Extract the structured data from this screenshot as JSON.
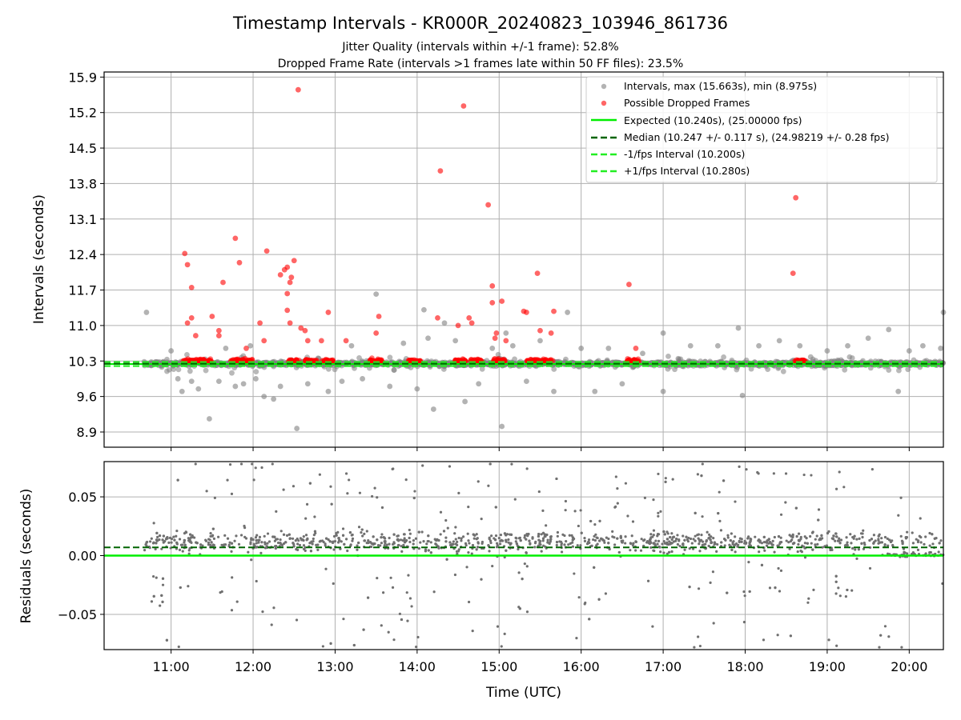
{
  "chart_data": [
    {
      "type": "scatter",
      "title": "Timestamp Intervals - KR000R_20240823_103946_861736",
      "subtitles": [
        "Jitter Quality (intervals within +/-1 frame): 52.8%",
        "Dropped Frame Rate (intervals >1 frames late within 50 FF files): 23.5%"
      ],
      "ylabel": "Intervals (seconds)",
      "ylim": [
        8.6,
        16.0
      ],
      "yticks": [
        "8.9",
        "9.6",
        "10.3",
        "11.0",
        "11.7",
        "12.4",
        "13.1",
        "13.8",
        "14.5",
        "15.2",
        "15.9"
      ],
      "xlim": [
        "10:11",
        "20:25"
      ],
      "grid": true,
      "legend_position": "upper right",
      "legend": [
        "Intervals, max (15.663s), min (8.975s)",
        "Possible Dropped Frames",
        "Expected (10.240s), (25.00000 fps)",
        "Median (10.247 +/- 0.117 s), (24.98219 +/- 0.28 fps)",
        "-1/fps Interval (10.200s)",
        "+1/fps Interval (10.280s)"
      ],
      "expected": 10.24,
      "median": 10.247,
      "minus_interval": 10.2,
      "plus_interval": 10.28,
      "interval_range": [
        "10:40",
        "20:25"
      ],
      "interval_outliers": [
        {
          "x": "10:42",
          "y": 11.26
        },
        {
          "x": "11:00",
          "y": 10.5
        },
        {
          "x": "11:05",
          "y": 9.95
        },
        {
          "x": "11:08",
          "y": 9.7
        },
        {
          "x": "11:15",
          "y": 9.9
        },
        {
          "x": "11:20",
          "y": 9.75
        },
        {
          "x": "11:28",
          "y": 9.16
        },
        {
          "x": "11:35",
          "y": 9.9
        },
        {
          "x": "11:40",
          "y": 10.55
        },
        {
          "x": "11:47",
          "y": 9.8
        },
        {
          "x": "11:53",
          "y": 9.85
        },
        {
          "x": "11:58",
          "y": 10.6
        },
        {
          "x": "12:02",
          "y": 9.95
        },
        {
          "x": "12:08",
          "y": 9.6
        },
        {
          "x": "12:15",
          "y": 9.55
        },
        {
          "x": "12:20",
          "y": 9.8
        },
        {
          "x": "12:32",
          "y": 8.97
        },
        {
          "x": "12:40",
          "y": 9.85
        },
        {
          "x": "12:48",
          "y": 10.35
        },
        {
          "x": "12:55",
          "y": 9.7
        },
        {
          "x": "13:05",
          "y": 9.9
        },
        {
          "x": "13:12",
          "y": 10.6
        },
        {
          "x": "13:20",
          "y": 9.95
        },
        {
          "x": "13:30",
          "y": 11.62
        },
        {
          "x": "13:40",
          "y": 9.8
        },
        {
          "x": "13:50",
          "y": 10.65
        },
        {
          "x": "14:00",
          "y": 9.75
        },
        {
          "x": "14:05",
          "y": 11.31
        },
        {
          "x": "14:08",
          "y": 10.75
        },
        {
          "x": "14:12",
          "y": 9.35
        },
        {
          "x": "14:20",
          "y": 11.05
        },
        {
          "x": "14:28",
          "y": 10.7
        },
        {
          "x": "14:35",
          "y": 9.5
        },
        {
          "x": "14:45",
          "y": 9.85
        },
        {
          "x": "14:55",
          "y": 10.55
        },
        {
          "x": "15:02",
          "y": 9.01
        },
        {
          "x": "15:05",
          "y": 10.85
        },
        {
          "x": "15:10",
          "y": 10.6
        },
        {
          "x": "15:20",
          "y": 9.9
        },
        {
          "x": "15:30",
          "y": 10.7
        },
        {
          "x": "15:40",
          "y": 9.7
        },
        {
          "x": "15:50",
          "y": 11.26
        },
        {
          "x": "16:00",
          "y": 10.55
        },
        {
          "x": "16:10",
          "y": 9.7
        },
        {
          "x": "16:20",
          "y": 10.55
        },
        {
          "x": "16:30",
          "y": 9.85
        },
        {
          "x": "16:45",
          "y": 10.45
        },
        {
          "x": "17:00",
          "y": 10.85
        },
        {
          "x": "17:00",
          "y": 9.7
        },
        {
          "x": "17:20",
          "y": 10.6
        },
        {
          "x": "17:40",
          "y": 10.6
        },
        {
          "x": "17:55",
          "y": 10.95
        },
        {
          "x": "17:58",
          "y": 9.62
        },
        {
          "x": "18:10",
          "y": 10.6
        },
        {
          "x": "18:25",
          "y": 10.7
        },
        {
          "x": "18:40",
          "y": 10.6
        },
        {
          "x": "19:00",
          "y": 10.5
        },
        {
          "x": "19:15",
          "y": 10.6
        },
        {
          "x": "19:30",
          "y": 10.75
        },
        {
          "x": "19:45",
          "y": 10.92
        },
        {
          "x": "19:52",
          "y": 9.7
        },
        {
          "x": "20:00",
          "y": 10.5
        },
        {
          "x": "20:10",
          "y": 10.6
        },
        {
          "x": "20:23",
          "y": 10.55
        },
        {
          "x": "20:25",
          "y": 11.26
        }
      ],
      "dropped_frame_clusters": [
        "11:13",
        "11:18",
        "11:25",
        "11:48",
        "11:55",
        "12:30",
        "12:42",
        "12:55",
        "13:58",
        "13:30",
        "14:32",
        "14:43",
        "15:00",
        "15:25",
        "15:35",
        "16:38",
        "18:40"
      ],
      "dropped_frames": [
        {
          "x": "11:10",
          "y": 12.42
        },
        {
          "x": "11:12",
          "y": 12.2
        },
        {
          "x": "11:15",
          "y": 11.75
        },
        {
          "x": "11:15",
          "y": 11.15
        },
        {
          "x": "11:12",
          "y": 11.05
        },
        {
          "x": "11:18",
          "y": 10.8
        },
        {
          "x": "11:30",
          "y": 11.18
        },
        {
          "x": "11:35",
          "y": 10.9
        },
        {
          "x": "11:35",
          "y": 10.8
        },
        {
          "x": "11:38",
          "y": 11.85
        },
        {
          "x": "11:47",
          "y": 12.72
        },
        {
          "x": "11:50",
          "y": 12.24
        },
        {
          "x": "11:55",
          "y": 10.55
        },
        {
          "x": "12:10",
          "y": 12.47
        },
        {
          "x": "12:05",
          "y": 11.05
        },
        {
          "x": "12:08",
          "y": 10.7
        },
        {
          "x": "12:20",
          "y": 12.0
        },
        {
          "x": "12:23",
          "y": 12.1
        },
        {
          "x": "12:25",
          "y": 12.15
        },
        {
          "x": "12:27",
          "y": 11.85
        },
        {
          "x": "12:28",
          "y": 11.95
        },
        {
          "x": "12:30",
          "y": 12.28
        },
        {
          "x": "12:25",
          "y": 11.63
        },
        {
          "x": "12:25",
          "y": 11.3
        },
        {
          "x": "12:27",
          "y": 11.05
        },
        {
          "x": "12:35",
          "y": 10.95
        },
        {
          "x": "12:33",
          "y": 15.65
        },
        {
          "x": "12:38",
          "y": 10.9
        },
        {
          "x": "12:40",
          "y": 10.7
        },
        {
          "x": "12:55",
          "y": 11.26
        },
        {
          "x": "12:50",
          "y": 10.7
        },
        {
          "x": "13:08",
          "y": 10.7
        },
        {
          "x": "13:30",
          "y": 10.85
        },
        {
          "x": "13:32",
          "y": 11.18
        },
        {
          "x": "14:15",
          "y": 11.15
        },
        {
          "x": "14:17",
          "y": 14.05
        },
        {
          "x": "14:30",
          "y": 11.0
        },
        {
          "x": "14:34",
          "y": 15.33
        },
        {
          "x": "14:38",
          "y": 11.15
        },
        {
          "x": "14:40",
          "y": 11.05
        },
        {
          "x": "14:52",
          "y": 13.38
        },
        {
          "x": "14:55",
          "y": 11.78
        },
        {
          "x": "14:55",
          "y": 11.45
        },
        {
          "x": "14:57",
          "y": 10.75
        },
        {
          "x": "14:58",
          "y": 10.85
        },
        {
          "x": "15:02",
          "y": 11.48
        },
        {
          "x": "15:05",
          "y": 10.7
        },
        {
          "x": "15:18",
          "y": 11.28
        },
        {
          "x": "15:20",
          "y": 11.26
        },
        {
          "x": "15:28",
          "y": 12.03
        },
        {
          "x": "15:30",
          "y": 10.9
        },
        {
          "x": "15:40",
          "y": 11.28
        },
        {
          "x": "15:38",
          "y": 10.85
        },
        {
          "x": "16:35",
          "y": 11.81
        },
        {
          "x": "16:40",
          "y": 10.55
        },
        {
          "x": "18:35",
          "y": 12.03
        },
        {
          "x": "18:37",
          "y": 13.52
        }
      ]
    },
    {
      "type": "scatter",
      "ylabel": "Residuals (seconds)",
      "xlabel": "Time (UTC)",
      "ylim": [
        -0.08,
        0.08
      ],
      "yticks": [
        "−0.05",
        "0.00",
        "0.05"
      ],
      "xticks": [
        "11:00",
        "12:00",
        "13:00",
        "14:00",
        "15:00",
        "16:00",
        "17:00",
        "18:00",
        "19:00",
        "20:00"
      ],
      "xlim": [
        "10:11",
        "20:25"
      ],
      "grid": true,
      "expected_residual": 0.0,
      "median_residual": 0.007,
      "points_range": [
        "10:40",
        "20:25"
      ],
      "typical_spread": [
        -0.04,
        0.05
      ]
    }
  ]
}
